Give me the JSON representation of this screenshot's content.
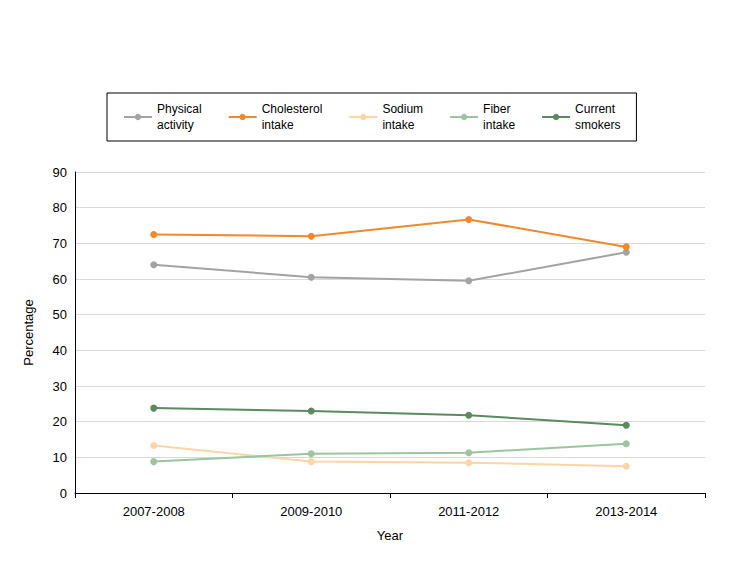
{
  "chart_data": {
    "type": "line",
    "x_label": "Year",
    "y_label": "Percentage",
    "categories": [
      "2007-2008",
      "2009-2010",
      "2011-2012",
      "2013-2014"
    ],
    "series": [
      {
        "name": "Physical activity",
        "color": "#a3a3a3",
        "values": [
          64,
          60.5,
          59.5,
          67.5
        ]
      },
      {
        "name": "Cholesterol intake",
        "color": "#f0882e",
        "values": [
          72.5,
          72,
          76.7,
          69
        ]
      },
      {
        "name": "Sodium intake",
        "color": "#fbd5a6",
        "values": [
          13.3,
          8.8,
          8.5,
          7.5
        ]
      },
      {
        "name": "Fiber intake",
        "color": "#9cc49e",
        "values": [
          8.8,
          11,
          11.3,
          13.8
        ]
      },
      {
        "name": "Current smokers",
        "color": "#5b8a5f",
        "values": [
          23.8,
          23,
          21.8,
          19
        ]
      }
    ],
    "ylim": [
      0,
      90
    ],
    "yticks": [
      0,
      10,
      20,
      30,
      40,
      50,
      60,
      70,
      80,
      90
    ],
    "grid": true,
    "legend": "top",
    "marker": "circle"
  }
}
